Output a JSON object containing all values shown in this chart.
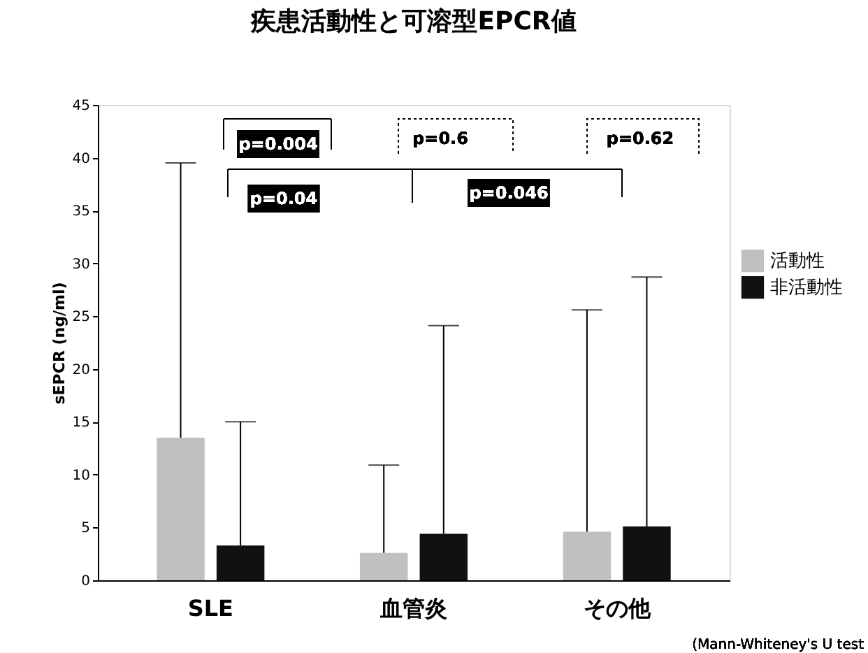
{
  "chart_data": {
    "type": "bar",
    "title": "疾患活動性と可溶型EPCR値",
    "ylabel": "sEPCR (ng/ml)",
    "categories": [
      "SLE",
      "血管炎",
      "その他"
    ],
    "series": [
      {
        "name": "活動性",
        "color": "#c0c0c0",
        "values": [
          13.5,
          2.6,
          4.6
        ],
        "errors": [
          [
            13.5,
            39.5
          ],
          [
            2.6,
            10.9
          ],
          [
            4.6,
            25.6
          ]
        ]
      },
      {
        "name": "非活動性",
        "color": "#111111",
        "values": [
          3.3,
          4.4,
          5.1
        ],
        "errors": [
          [
            3.3,
            15.0
          ],
          [
            4.4,
            24.1
          ],
          [
            5.1,
            28.7
          ]
        ]
      }
    ],
    "ylim": [
      0,
      45
    ],
    "yticks": [
      0,
      5,
      10,
      15,
      20,
      25,
      30,
      35,
      40,
      45
    ],
    "grid": false,
    "legend": "right",
    "annotations": [
      "p=0.004",
      "p=0.04",
      "p=0.6",
      "p=0.046",
      "p=0.62",
      "(Mann-Whiteney's U test"
    ]
  }
}
